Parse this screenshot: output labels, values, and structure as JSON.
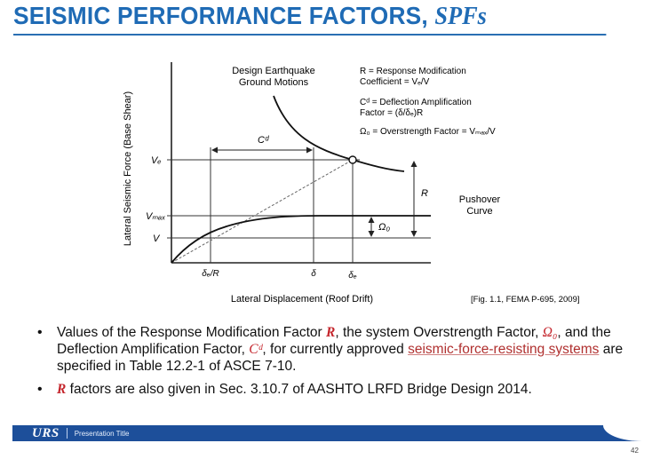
{
  "title": {
    "main": "SEISMIC PERFORMANCE FACTORS, ",
    "italic": "SPFs"
  },
  "diagram": {
    "y_axis_label": "Lateral Seismic Force (Base Shear)",
    "x_axis_label": "Lateral Displacement (Roof Drift)",
    "design_eq_label": [
      "Design Earthquake",
      "Ground Motions"
    ],
    "pushover_label": [
      "Pushover",
      "Curve"
    ],
    "legend": [
      "R = Response Modification",
      "Coefficient = Vₑ/V",
      "Cᵈ = Deflection Amplification",
      "Factor = (δ/δₑ)R",
      "Ω₀ = Overstrength Factor = Vₘₐₓ/V"
    ],
    "y_ticks": {
      "ve": "Vₑ",
      "vmax": "Vₘₐₓ",
      "v": "V"
    },
    "x_ticks": {
      "de_over_r": "δₑ/R",
      "delta": "δ",
      "de": "δₑ"
    },
    "cd_label": "Cᵈ",
    "r_label": "R",
    "omega_label": "Ω₀",
    "source": "[Fig. 1.1, FEMA P-695, 2009]"
  },
  "bullets": {
    "b1_a": "Values of the Response Modification Factor ",
    "b1_r": "R",
    "b1_b": ", the system Overstrength Factor, ",
    "b1_omega": "Ω₀",
    "b1_c": ", and the Deflection Amplification Factor, ",
    "b1_cd": "Cᵈ",
    "b1_d": ", for currently approved ",
    "b1_link": "seismic-force-resisting systems",
    "b1_e": " are specified in Table 12.2-1 of ASCE 7-10.",
    "b2_r": "R",
    "b2_a": " factors are also given in Sec. 3.10.7 of AASHTO LRFD Bridge Design 2014."
  },
  "footer": {
    "logo": "URS",
    "text": "Presentation Title"
  },
  "page_number": "42",
  "colors": {
    "title_blue": "#1f6bb5",
    "footer_blue": "#1d4f9a",
    "symbol_red": "#c4242b"
  }
}
